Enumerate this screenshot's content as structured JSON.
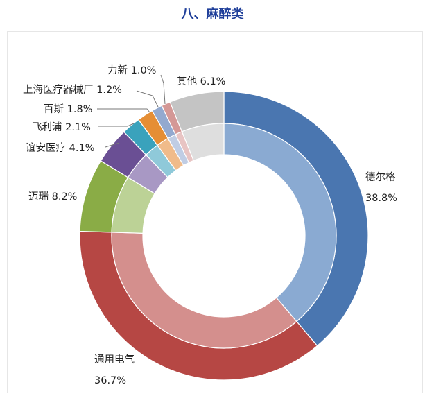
{
  "page": {
    "title": "八、麻醉类"
  },
  "chart_data": {
    "type": "pie",
    "title": "",
    "legend": "none",
    "series": [
      {
        "values": [
          38.8,
          36.7,
          8.2,
          4.1,
          2.1,
          1.8,
          1.2,
          1.0,
          6.1
        ]
      }
    ],
    "categories": [
      "德尔格",
      "通用电气",
      "迈瑞",
      "谊安医疗",
      "飞利浦",
      "百斯",
      "上海医疗器械厂",
      "力新",
      "其他"
    ],
    "slices": [
      {
        "label": "德尔格",
        "value_text": "38.8%",
        "value": 38.8,
        "color": "#4a76b0",
        "inner_color": "#8aaad2"
      },
      {
        "label": "通用电气",
        "value_text": "36.7%",
        "value": 36.7,
        "color": "#b64744",
        "inner_color": "#d48f8d"
      },
      {
        "label": "迈瑞",
        "value_text": "8.2%",
        "value": 8.2,
        "color": "#8aac46",
        "inner_color": "#bcd296"
      },
      {
        "label": "谊安医疗",
        "value_text": "4.1%",
        "value": 4.1,
        "color": "#6a4f94",
        "inner_color": "#a898c4"
      },
      {
        "label": "飞利浦",
        "value_text": "2.1%",
        "value": 2.1,
        "color": "#3aa2bc",
        "inner_color": "#8fc9d9"
      },
      {
        "label": "百斯",
        "value_text": "1.8%",
        "value": 1.8,
        "color": "#e58e35",
        "inner_color": "#f0bb8a"
      },
      {
        "label": "上海医疗器械厂",
        "value_text": "1.2%",
        "value": 1.2,
        "color": "#93a9cf",
        "inner_color": "#c0cde4"
      },
      {
        "label": "力新",
        "value_text": "1.0%",
        "value": 1.0,
        "color": "#d49896",
        "inner_color": "#e8c4c3"
      },
      {
        "label": "其他",
        "value_text": "6.1%",
        "value": 6.1,
        "color": "#c4c4c4",
        "inner_color": "#dedede"
      }
    ]
  }
}
